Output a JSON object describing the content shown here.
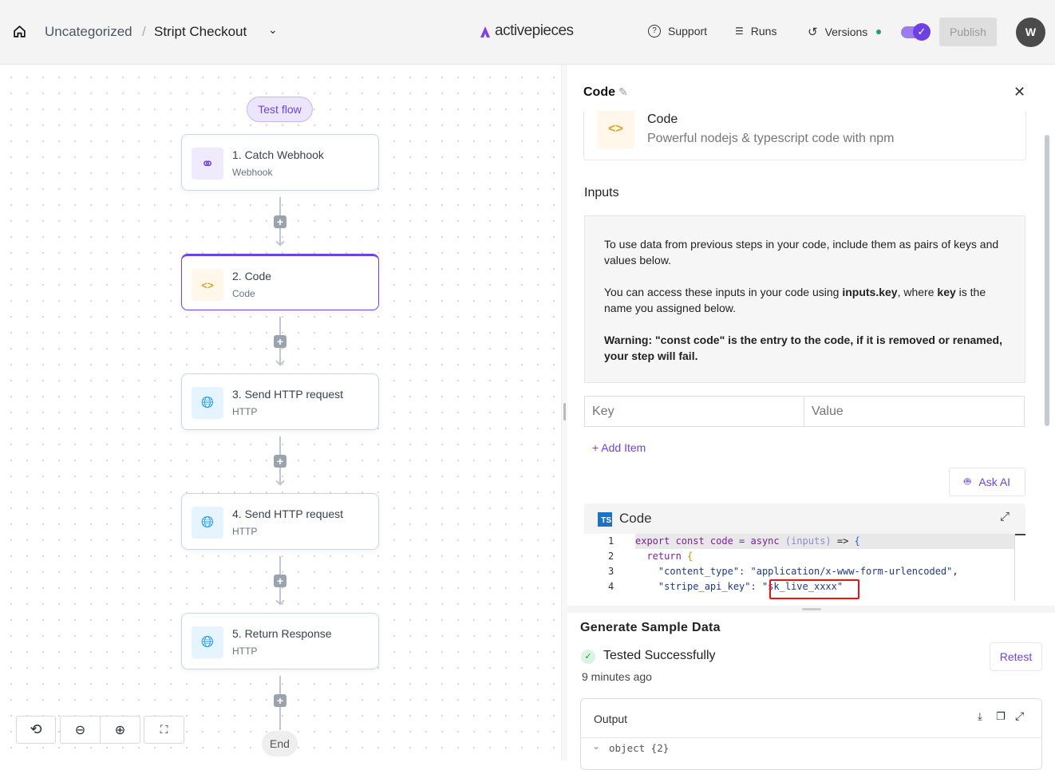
{
  "header": {
    "breadcrumb_folder": "Uncategorized",
    "separator": "/",
    "flow_name": "Stript Checkout",
    "logo_text": "activepieces",
    "support": "Support",
    "runs": "Runs",
    "versions": "Versions",
    "publish": "Publish",
    "avatar": "W",
    "toggle_on": true,
    "accent": "#6e41e2"
  },
  "canvas": {
    "test_flow": "Test flow",
    "end": "End",
    "steps": [
      {
        "title": "1. Catch Webhook",
        "subtitle": "Webhook",
        "icon": "webhook-icon"
      },
      {
        "title": "2. Code",
        "subtitle": "Code",
        "icon": "code-icon"
      },
      {
        "title": "3. Send HTTP request",
        "subtitle": "HTTP",
        "icon": "globe-icon"
      },
      {
        "title": "4. Send HTTP request",
        "subtitle": "HTTP",
        "icon": "globe-icon"
      },
      {
        "title": "5. Return Response",
        "subtitle": "HTTP",
        "icon": "globe-icon"
      }
    ]
  },
  "panel": {
    "title": "Code",
    "piece_name": "Code",
    "piece_desc": "Powerful nodejs & typescript code with npm",
    "inputs_label": "Inputs",
    "info_p1": "To use data from previous steps in your code, include them as pairs of keys and values below.",
    "info_p2_a": "You can access these inputs in your code using ",
    "info_p2_b": "inputs.key",
    "info_p2_c": ", where ",
    "info_p2_d": "key",
    "info_p2_e": " is the name you assigned below.",
    "info_p3_a": "Warning: ",
    "info_p3_b": "\"const code\" is the entry to the code, if it is removed or renamed, your step will fail.",
    "key_placeholder": "Key",
    "value_placeholder": "Value",
    "add_item": "+ Add Item",
    "ask_ai": "Ask AI",
    "editor_title": "Code",
    "ts_badge": "TS",
    "code_lines": [
      {
        "n": "1",
        "parts": [
          [
            "export const code = async ",
            "#7c1fa0"
          ],
          [
            "(inputs)",
            "#8b8bd6"
          ],
          [
            " => ",
            "#222"
          ],
          [
            "{",
            "#2563eb"
          ]
        ]
      },
      {
        "n": "2",
        "parts": [
          [
            "  return ",
            "#7c1fa0"
          ],
          [
            "{",
            "#b7950b"
          ]
        ]
      },
      {
        "n": "3",
        "parts": [
          [
            "    \"content_type\": ",
            "#1e3a8a"
          ],
          [
            "\"application/x-www-form-urlencoded\"",
            "#1e3a8a"
          ],
          [
            ",",
            "#222"
          ]
        ]
      },
      {
        "n": "4",
        "parts": [
          [
            "    \"stripe_api_key\": ",
            "#1e3a8a"
          ],
          [
            "\"sk_live_xxxx\"",
            "#1e3a8a"
          ]
        ]
      }
    ]
  },
  "sample": {
    "title": "Generate Sample Data",
    "status": "Tested Successfully",
    "time": "9 minutes ago",
    "retest": "Retest",
    "output_label": "Output",
    "output_value": "object {2}"
  }
}
